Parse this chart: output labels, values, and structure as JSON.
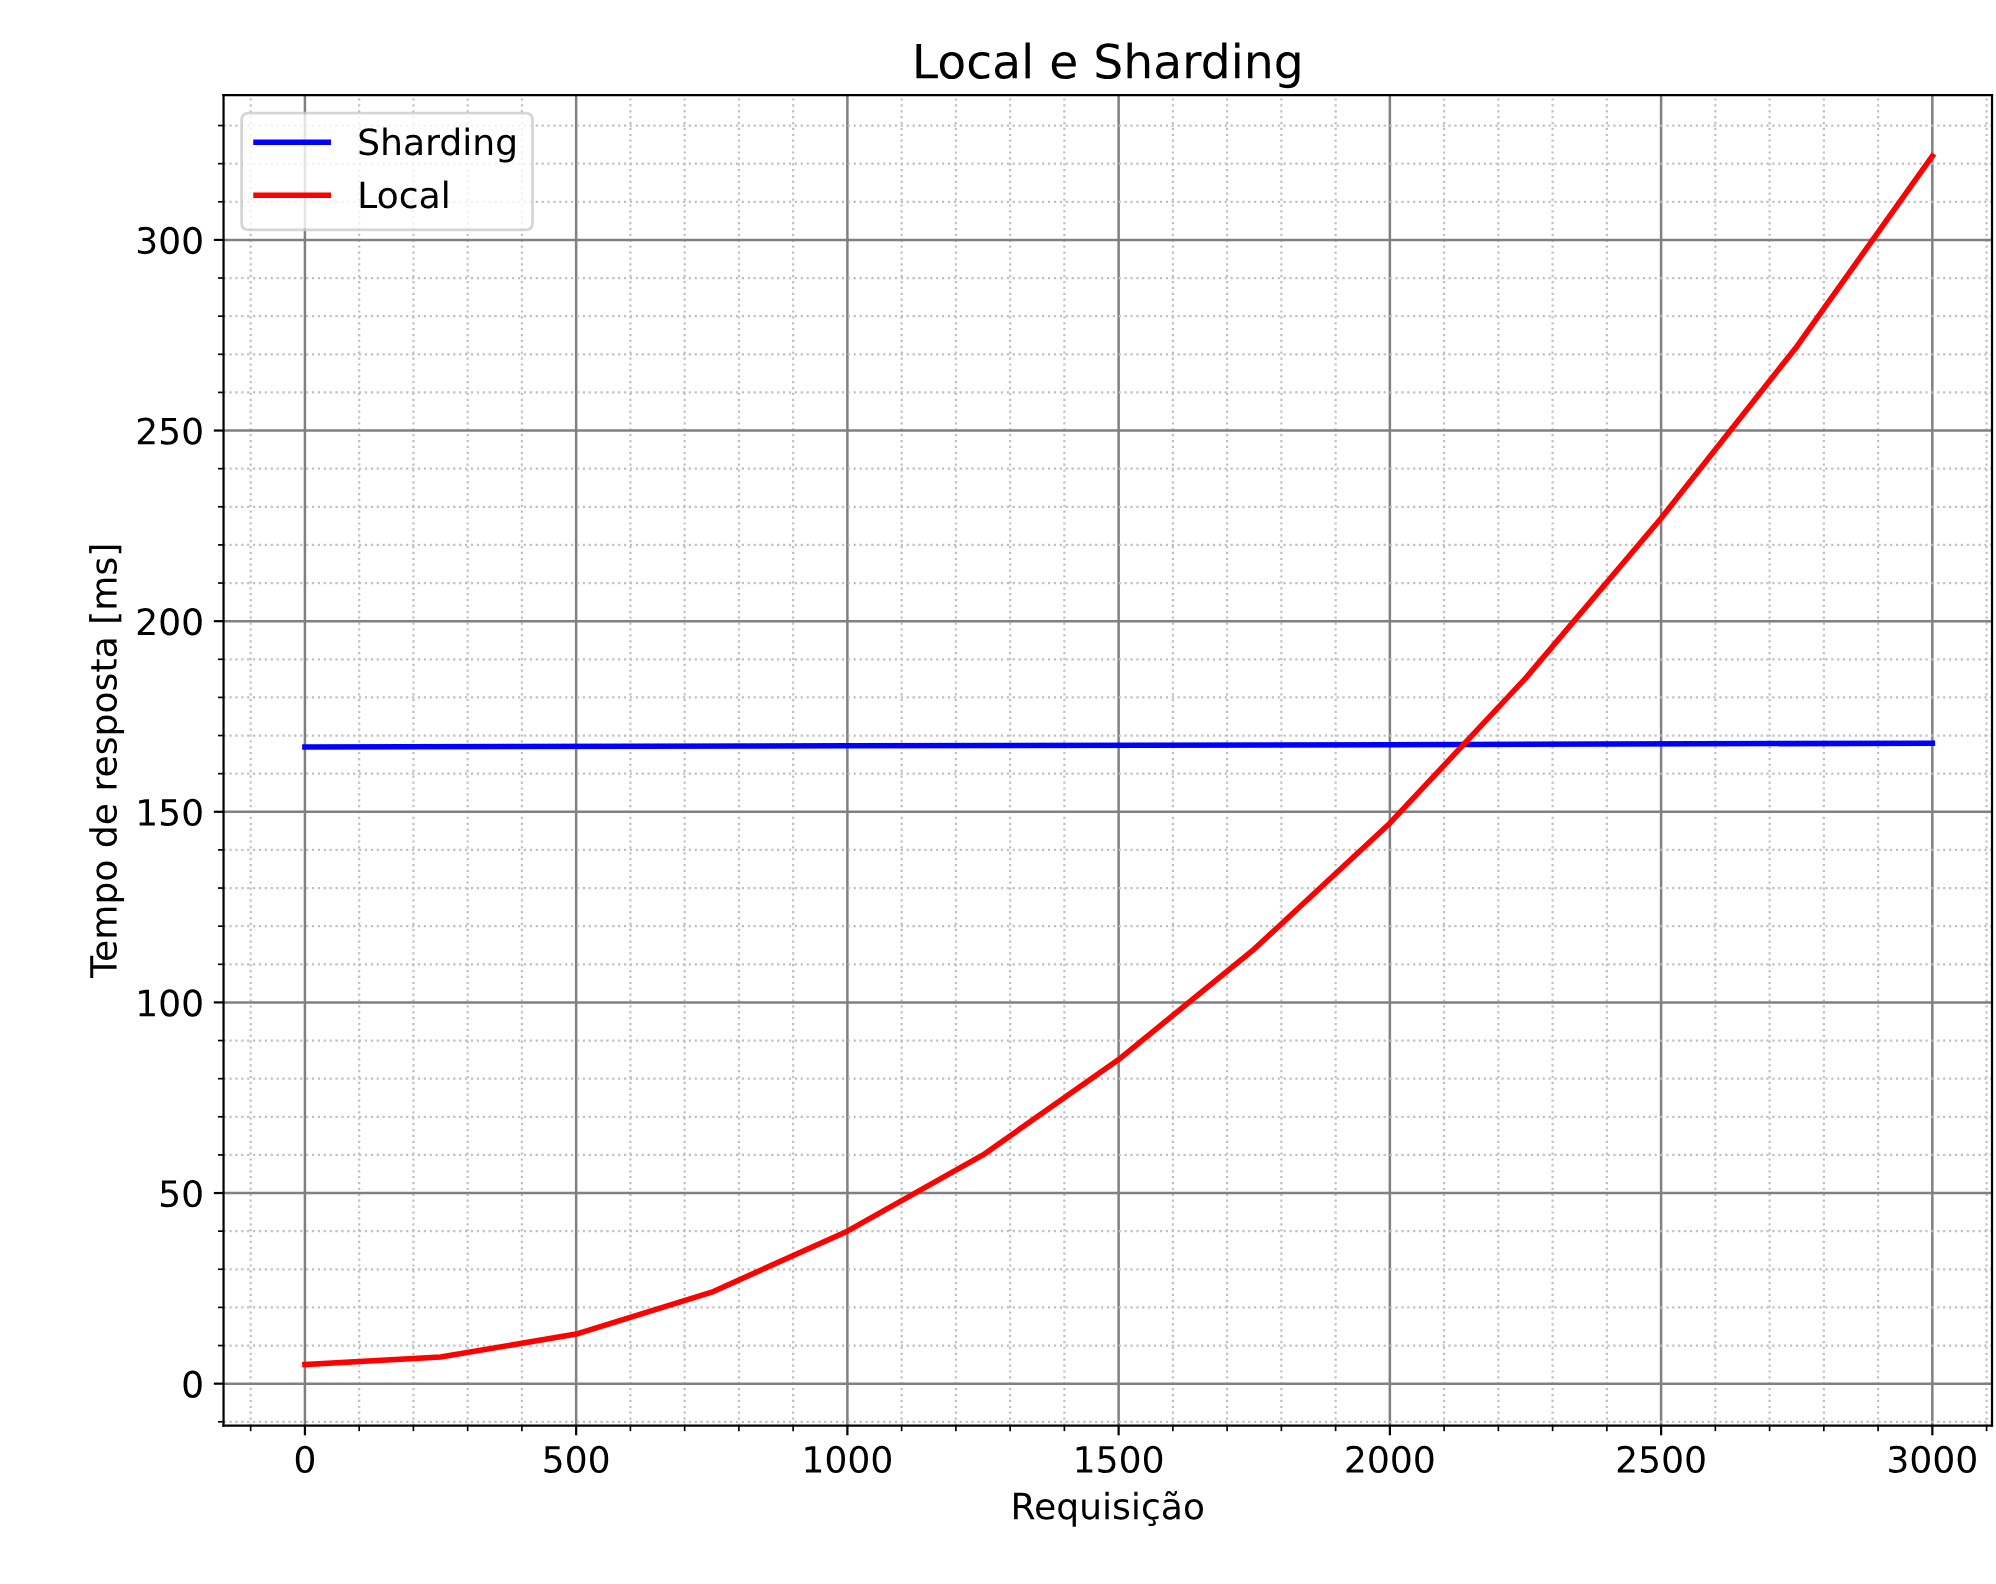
{
  "chart_data": {
    "type": "line",
    "title": "Local e Sharding",
    "xlabel": "Requisição",
    "ylabel": "Tempo de resposta [ms]",
    "series": [
      {
        "name": "Sharding",
        "color": "#0000ff",
        "x": [
          0,
          1000,
          2000,
          3000
        ],
        "values": [
          167,
          167.3,
          167.6,
          168
        ]
      },
      {
        "name": "Local",
        "color": "#ff0000",
        "x": [
          0,
          250,
          500,
          750,
          1000,
          1250,
          1500,
          1750,
          2000,
          2250,
          2500,
          2750,
          3000
        ],
        "values": [
          5,
          7,
          13,
          24,
          40,
          60,
          85,
          114,
          147,
          185,
          227,
          272,
          322
        ]
      }
    ],
    "xlim": [
      -150,
      3110
    ],
    "ylim": [
      -11,
      338
    ],
    "xticks": [
      0,
      500,
      1000,
      1500,
      2000,
      2500,
      3000,
      {
        "value": -100,
        "label": null
      },
      {
        "value": 100,
        "label": null
      },
      {
        "value": 200,
        "label": null
      },
      {
        "value": 300,
        "label": null
      },
      {
        "value": 400,
        "label": null
      },
      {
        "value": 600,
        "label": null
      },
      {
        "value": 700,
        "label": null
      },
      {
        "value": 800,
        "label": null
      },
      {
        "value": 900,
        "label": null
      },
      {
        "value": 1100,
        "label": null
      },
      {
        "value": 1200,
        "label": null
      },
      {
        "value": 1300,
        "label": null
      },
      {
        "value": 1400,
        "label": null
      },
      {
        "value": 1600,
        "label": null
      },
      {
        "value": 1700,
        "label": null
      },
      {
        "value": 1800,
        "label": null
      },
      {
        "value": 1900,
        "label": null
      },
      {
        "value": 2100,
        "label": null
      },
      {
        "value": 2200,
        "label": null
      },
      {
        "value": 2300,
        "label": null
      },
      {
        "value": 2400,
        "label": null
      },
      {
        "value": 2600,
        "label": null
      },
      {
        "value": 2700,
        "label": null
      },
      {
        "value": 2800,
        "label": null
      },
      {
        "value": 2900,
        "label": null
      },
      {
        "value": 3100,
        "label": null
      }
    ],
    "yticks": [
      0,
      50,
      100,
      150,
      200,
      250,
      300,
      {
        "value": -10,
        "label": null
      },
      {
        "value": 10,
        "label": null
      },
      {
        "value": 20,
        "label": null
      },
      {
        "value": 30,
        "label": null
      },
      {
        "value": 40,
        "label": null
      },
      {
        "value": 60,
        "label": null
      },
      {
        "value": 70,
        "label": null
      },
      {
        "value": 80,
        "label": null
      },
      {
        "value": 90,
        "label": null
      },
      {
        "value": 110,
        "label": null
      },
      {
        "value": 120,
        "label": null
      },
      {
        "value": 130,
        "label": null
      },
      {
        "value": 140,
        "label": null
      },
      {
        "value": 160,
        "label": null
      },
      {
        "value": 170,
        "label": null
      },
      {
        "value": 180,
        "label": null
      },
      {
        "value": 190,
        "label": null
      },
      {
        "value": 210,
        "label": null
      },
      {
        "value": 220,
        "label": null
      },
      {
        "value": 230,
        "label": null
      },
      {
        "value": 240,
        "label": null
      },
      {
        "value": 260,
        "label": null
      },
      {
        "value": 270,
        "label": null
      },
      {
        "value": 280,
        "label": null
      },
      {
        "value": 290,
        "label": null
      },
      {
        "value": 310,
        "label": null
      },
      {
        "value": 320,
        "label": null
      },
      {
        "value": 330,
        "label": null
      }
    ],
    "grid": true,
    "legend": "top left",
    "line_style": "solid",
    "marker": "none"
  }
}
